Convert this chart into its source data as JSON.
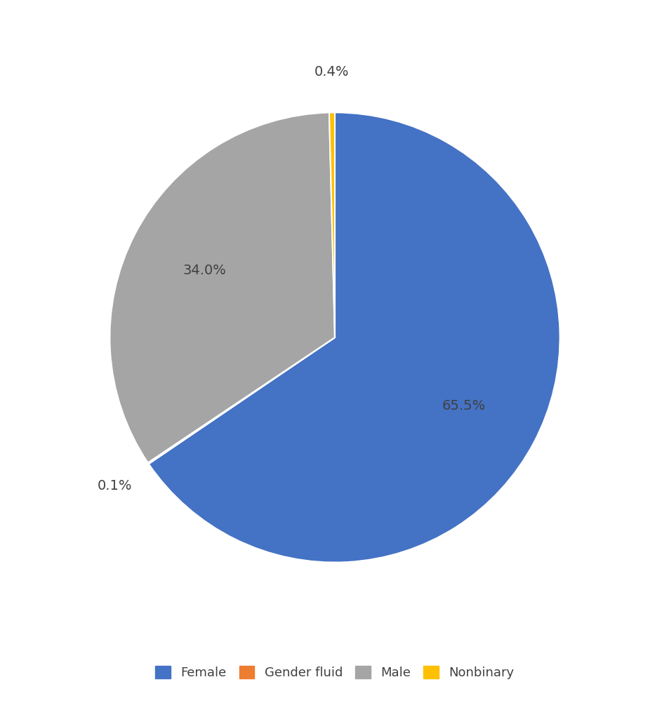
{
  "labels": [
    "Female",
    "Gender fluid",
    "Male",
    "Nonbinary"
  ],
  "values": [
    65.5,
    0.1,
    34.0,
    0.4
  ],
  "colors": [
    "#4472C4",
    "#ED7D31",
    "#A5A5A5",
    "#FFC000"
  ],
  "legend_labels": [
    "Female",
    "Gender fluid",
    "Male",
    "Nonbinary"
  ],
  "startangle": 90,
  "background_color": "#FFFFFF",
  "text_color": "#404040",
  "fontsize": 14,
  "legend_fontsize": 13
}
